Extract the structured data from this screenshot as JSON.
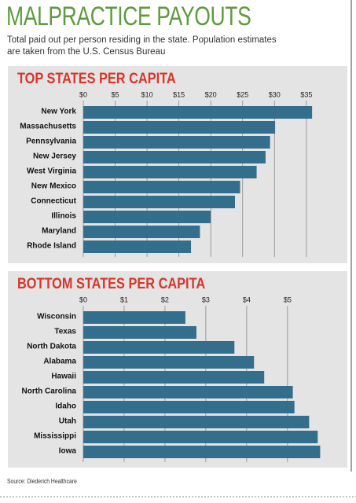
{
  "title": "MALPRACTICE PAYOUTS",
  "subtitle": [
    "Total paid out per person residing in the state. Population estimates",
    "are taken from the U.S. Census Bureau"
  ],
  "source": "Source: Diederich Healthcare",
  "chart_data": [
    {
      "type": "bar",
      "orientation": "horizontal",
      "title": "TOP STATES PER CAPITA",
      "categories": [
        "New York",
        "Massachusetts",
        "Pennsylvania",
        "New Jersey",
        "West Virginia",
        "New Mexico",
        "Connecticut",
        "Illinois",
        "Maryland",
        "Rhode Island"
      ],
      "values": [
        35.9,
        30.1,
        29.3,
        28.6,
        27.2,
        24.6,
        23.8,
        20.0,
        18.3,
        16.9
      ],
      "color": "#336f8c",
      "xlim": [
        0,
        36.5
      ],
      "xticks": [
        {
          "value": 0,
          "label": "$0"
        },
        {
          "value": 5,
          "label": "$5"
        },
        {
          "value": 10,
          "label": "$10"
        },
        {
          "value": 15,
          "label": "$15"
        },
        {
          "value": 20,
          "label": "$20"
        },
        {
          "value": 25,
          "label": "$25"
        },
        {
          "value": 30,
          "label": "$30"
        },
        {
          "value": 35,
          "label": "$35"
        }
      ],
      "grid": true
    },
    {
      "type": "bar",
      "orientation": "horizontal",
      "title": "BOTTOM STATES PER CAPITA",
      "categories": [
        "Wisconsin",
        "Texas",
        "North Dakota",
        "Alabama",
        "Hawaii",
        "North Carolina",
        "Idaho",
        "Utah",
        "Mississippi",
        "Iowa"
      ],
      "values": [
        2.5,
        2.77,
        3.7,
        4.18,
        4.43,
        5.13,
        5.17,
        5.53,
        5.74,
        5.8
      ],
      "color": "#336f8c",
      "xlim": [
        0,
        5.85
      ],
      "xticks": [
        {
          "value": 0,
          "label": "$0"
        },
        {
          "value": 1,
          "label": "$1"
        },
        {
          "value": 2,
          "label": "$2"
        },
        {
          "value": 3,
          "label": "$3"
        },
        {
          "value": 4,
          "label": "$4"
        },
        {
          "value": 5,
          "label": "$5"
        }
      ],
      "grid": true
    }
  ]
}
